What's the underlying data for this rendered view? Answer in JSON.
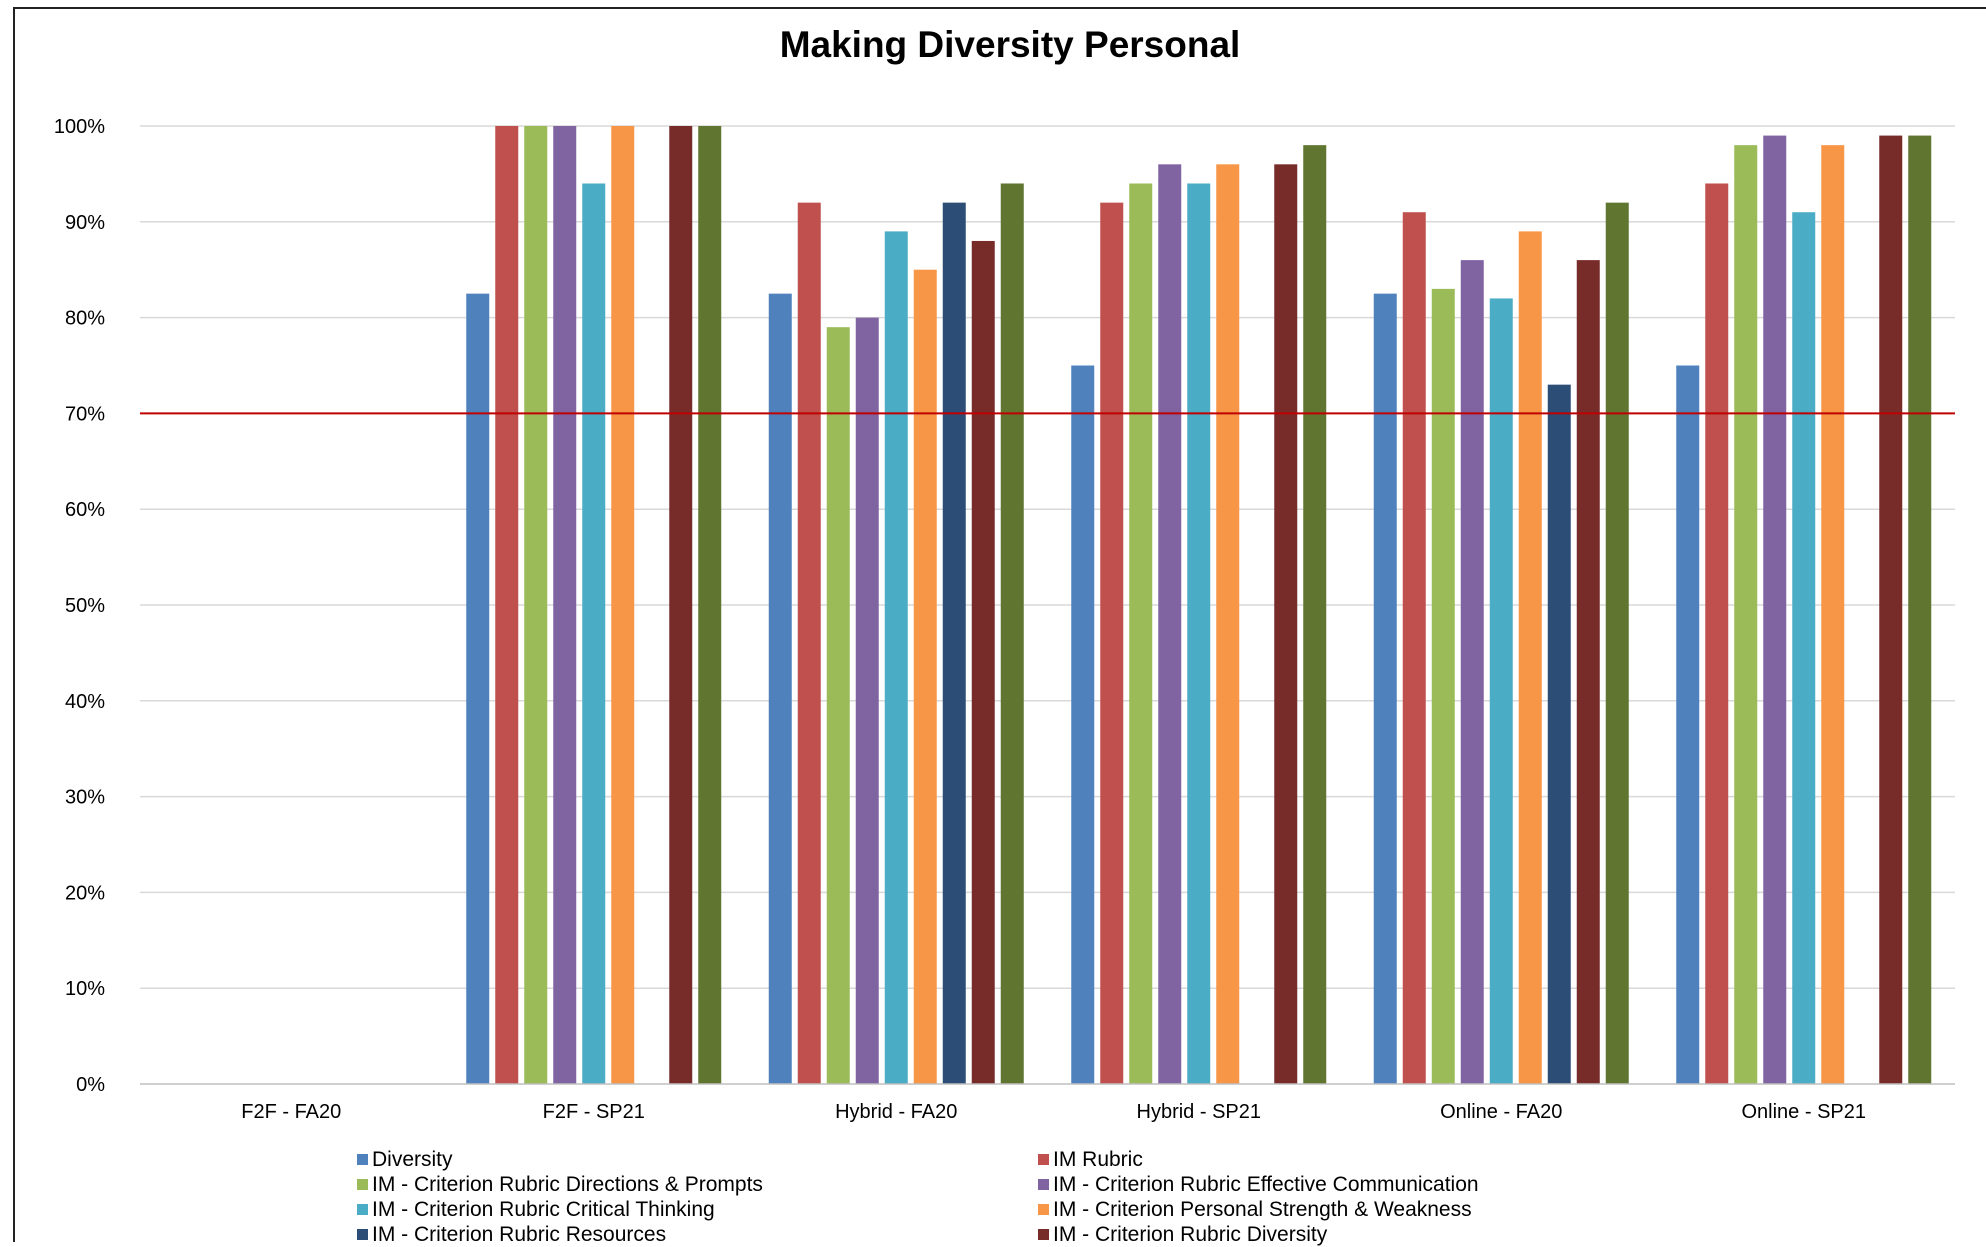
{
  "chart_data": {
    "type": "bar",
    "title": "Making Diversity Personal",
    "xlabel": "",
    "ylabel": "",
    "ylim": [
      0,
      100
    ],
    "yticks": [
      "0%",
      "10%",
      "20%",
      "30%",
      "40%",
      "50%",
      "60%",
      "70%",
      "80%",
      "90%",
      "100%"
    ],
    "grid": true,
    "legend_position": "bottom",
    "reference_line": {
      "value": 70,
      "color": "#C00000"
    },
    "categories": [
      "F2F - FA20",
      "F2F - SP21",
      "Hybrid - FA20",
      "Hybrid - SP21",
      "Online - FA20",
      "Online - SP21"
    ],
    "series": [
      {
        "name": "Diversity",
        "color": "#4F81BD",
        "values": [
          null,
          82.5,
          82.5,
          75,
          82.5,
          75
        ]
      },
      {
        "name": "IM Rubric",
        "color": "#C0504D",
        "values": [
          null,
          100,
          92,
          92,
          91,
          94
        ]
      },
      {
        "name": "IM - Criterion Rubric Directions & Prompts",
        "color": "#9BBB59",
        "values": [
          null,
          100,
          79,
          94,
          83,
          98
        ]
      },
      {
        "name": "IM - Criterion Rubric Effective Communication",
        "color": "#8064A2",
        "values": [
          null,
          100,
          80,
          96,
          86,
          99
        ]
      },
      {
        "name": "IM - Criterion Rubric Critical Thinking",
        "color": "#4BACC6",
        "values": [
          null,
          94,
          89,
          94,
          82,
          91
        ]
      },
      {
        "name": "IM - Criterion Personal Strength & Weakness",
        "color": "#F79646",
        "values": [
          null,
          100,
          85,
          96,
          89,
          98
        ]
      },
      {
        "name": "IM - Criterion Rubric Resources",
        "color": "#2C4D75",
        "values": [
          null,
          null,
          92,
          null,
          73,
          null
        ]
      },
      {
        "name": "IM - Criterion Rubric Diversity",
        "color": "#772C2A",
        "values": [
          null,
          100,
          88,
          96,
          86,
          99
        ]
      },
      {
        "name": "",
        "color": "#5F7530",
        "values": [
          null,
          100,
          94,
          98,
          92,
          99
        ]
      }
    ]
  }
}
